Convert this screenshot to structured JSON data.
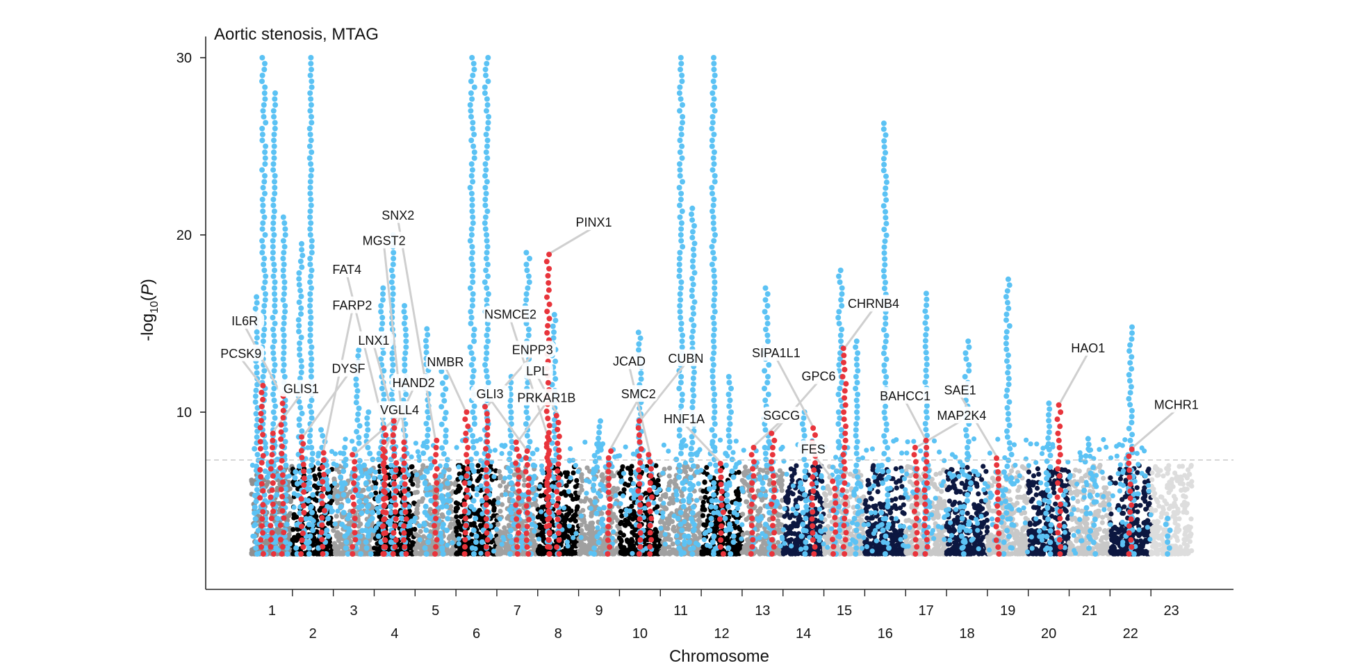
{
  "chart_data": {
    "type": "scatter",
    "subtype": "manhattan",
    "title": "Aortic stenosis, MTAG",
    "xlabel": "Chromosome",
    "ylabel": "-log10(P)",
    "ylabel_parts": {
      "prefix": "-log",
      "sub": "10",
      "open": "(",
      "italic": "P",
      "close": ")"
    },
    "ylim": [
      0,
      31
    ],
    "yticks": [
      10,
      20,
      30
    ],
    "significance_threshold": 7.3,
    "colors": {
      "significant": "#5bc2f4",
      "lead": "#e8343b",
      "background": [
        "#8f8f8f",
        "#000000",
        "#a0a0a0",
        "#0c1740",
        "#c8c8c8",
        "#dddddd"
      ],
      "axis": "#222222",
      "threshold_line": "#bdbdbd",
      "connector": "#cfcfcf"
    },
    "chromosomes": [
      {
        "name": "1",
        "row": 1,
        "bg": 0,
        "peaks": [
          [
            0.12,
            16.5
          ],
          [
            0.3,
            30
          ],
          [
            0.55,
            28
          ],
          [
            0.8,
            21
          ]
        ]
      },
      {
        "name": "2",
        "row": 2,
        "bg": 1,
        "peaks": [
          [
            0.2,
            19.5
          ],
          [
            0.45,
            30
          ],
          [
            0.75,
            9
          ]
        ]
      },
      {
        "name": "3",
        "row": 1,
        "bg": 2,
        "peaks": [
          [
            0.3,
            8
          ],
          [
            0.6,
            13.5
          ],
          [
            0.85,
            10
          ]
        ]
      },
      {
        "name": "4",
        "row": 2,
        "bg": 1,
        "peaks": [
          [
            0.2,
            17
          ],
          [
            0.45,
            20
          ],
          [
            0.75,
            16
          ]
        ]
      },
      {
        "name": "5",
        "row": 1,
        "bg": 2,
        "peaks": [
          [
            0.3,
            14.7
          ],
          [
            0.7,
            12.3
          ]
        ]
      },
      {
        "name": "6",
        "row": 2,
        "bg": 1,
        "peaks": [
          [
            0.4,
            30
          ],
          [
            0.75,
            30
          ]
        ]
      },
      {
        "name": "7",
        "row": 1,
        "bg": 2,
        "peaks": [
          [
            0.35,
            12
          ],
          [
            0.75,
            19
          ]
        ]
      },
      {
        "name": "8",
        "row": 2,
        "bg": 1,
        "peaks": [
          [
            0.4,
            15.5
          ]
        ]
      },
      {
        "name": "9",
        "row": 1,
        "bg": 2,
        "peaks": [
          [
            0.5,
            9.5
          ]
        ]
      },
      {
        "name": "10",
        "row": 2,
        "bg": 1,
        "peaks": [
          [
            0.5,
            14.5
          ]
        ]
      },
      {
        "name": "11",
        "row": 1,
        "bg": 2,
        "peaks": [
          [
            0.5,
            30
          ],
          [
            0.8,
            21.5
          ]
        ]
      },
      {
        "name": "12",
        "row": 2,
        "bg": 1,
        "peaks": [
          [
            0.3,
            30
          ],
          [
            0.7,
            12
          ]
        ]
      },
      {
        "name": "13",
        "row": 1,
        "bg": 2,
        "peaks": [
          [
            0.6,
            17
          ]
        ]
      },
      {
        "name": "14",
        "row": 2,
        "bg": 3,
        "peaks": [
          [
            0.5,
            10
          ]
        ]
      },
      {
        "name": "15",
        "row": 1,
        "bg": 4,
        "peaks": [
          [
            0.4,
            18
          ],
          [
            0.8,
            14
          ]
        ]
      },
      {
        "name": "16",
        "row": 2,
        "bg": 3,
        "peaks": [
          [
            0.5,
            26.3
          ]
        ]
      },
      {
        "name": "17",
        "row": 1,
        "bg": 4,
        "peaks": [
          [
            0.5,
            16.7
          ]
        ]
      },
      {
        "name": "18",
        "row": 2,
        "bg": 3,
        "peaks": [
          [
            0.5,
            14
          ]
        ]
      },
      {
        "name": "19",
        "row": 1,
        "bg": 4,
        "peaks": [
          [
            0.5,
            17.5
          ]
        ]
      },
      {
        "name": "20",
        "row": 2,
        "bg": 3,
        "peaks": [
          [
            0.5,
            10.5
          ]
        ]
      },
      {
        "name": "21",
        "row": 1,
        "bg": 4,
        "peaks": [
          [
            0.5,
            8.5
          ]
        ]
      },
      {
        "name": "22",
        "row": 2,
        "bg": 3,
        "peaks": [
          [
            0.5,
            14.8
          ]
        ]
      },
      {
        "name": "23",
        "row": 1,
        "bg": 5,
        "peaks": [
          [
            0.4,
            4
          ]
        ]
      }
    ],
    "annotated_loci": [
      {
        "gene": "PCSK9",
        "chromosome": "1",
        "p": 11.5
      },
      {
        "gene": "GLIS1",
        "chromosome": "1",
        "p": 8.8
      },
      {
        "gene": "IL6R",
        "chromosome": "1",
        "p": 10.9
      },
      {
        "gene": "DYSF",
        "chromosome": "2",
        "p": 8.6
      },
      {
        "gene": "LNX1",
        "chromosome": "4",
        "p": 9.5
      },
      {
        "gene": "FARP2",
        "chromosome": "2",
        "p": 7.7
      },
      {
        "gene": "FAT4",
        "chromosome": "4",
        "p": 9.1
      },
      {
        "gene": "VGLL4",
        "chromosome": "3",
        "p": 7.6
      },
      {
        "gene": "MGST2",
        "chromosome": "4",
        "p": 8.3
      },
      {
        "gene": "HAND2",
        "chromosome": "4",
        "p": 7.8
      },
      {
        "gene": "SNX2",
        "chromosome": "5",
        "p": 8.4
      },
      {
        "gene": "ENPP3",
        "chromosome": "6",
        "p": 10.3
      },
      {
        "gene": "NMBR",
        "chromosome": "6",
        "p": 10.0
      },
      {
        "gene": "PRKAR1B",
        "chromosome": "7",
        "p": 8.3
      },
      {
        "gene": "GLI3",
        "chromosome": "7",
        "p": 7.8
      },
      {
        "gene": "PINX1",
        "chromosome": "8",
        "p": 18.9
      },
      {
        "gene": "LPL",
        "chromosome": "8",
        "p": 9.8
      },
      {
        "gene": "SMC2",
        "chromosome": "9",
        "p": 7.8
      },
      {
        "gene": "NSMCE2",
        "chromosome": "8",
        "p": 8.6
      },
      {
        "gene": "CUBN",
        "chromosome": "10",
        "p": 9.5
      },
      {
        "gene": "JCAD",
        "chromosome": "10",
        "p": 7.6
      },
      {
        "gene": "SGCG",
        "chromosome": "13",
        "p": 8.0
      },
      {
        "gene": "HNF1A",
        "chromosome": "12",
        "p": 7.1
      },
      {
        "gene": "GPC6",
        "chromosome": "13",
        "p": 8.8
      },
      {
        "gene": "FES",
        "chromosome": "15",
        "p": 6.1
      },
      {
        "gene": "CHRNB4",
        "chromosome": "15",
        "p": 13.6
      },
      {
        "gene": "SIPA1L1",
        "chromosome": "14",
        "p": 9.1
      },
      {
        "gene": "MAP2K4",
        "chromosome": "17",
        "p": 8.0
      },
      {
        "gene": "BAHCC1",
        "chromosome": "17",
        "p": 8.4
      },
      {
        "gene": "HAO1",
        "chromosome": "20",
        "p": 10.4
      },
      {
        "gene": "SAE1",
        "chromosome": "19",
        "p": 7.4
      },
      {
        "gene": "MCHR1",
        "chromosome": "22",
        "p": 7.9
      }
    ]
  }
}
